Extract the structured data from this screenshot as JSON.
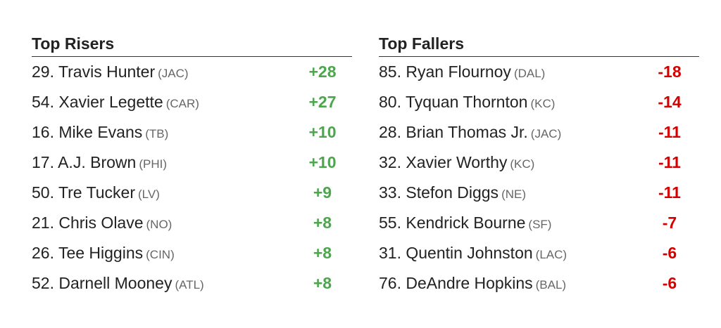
{
  "risers": {
    "title": "Top Risers",
    "rows": [
      {
        "player": "29. Travis Hunter",
        "team": "(JAC)",
        "change": "+28"
      },
      {
        "player": "54. Xavier Legette",
        "team": "(CAR)",
        "change": "+27"
      },
      {
        "player": "16. Mike Evans",
        "team": "(TB)",
        "change": "+10"
      },
      {
        "player": "17. A.J. Brown",
        "team": "(PHI)",
        "change": "+10"
      },
      {
        "player": "50. Tre Tucker",
        "team": "(LV)",
        "change": "+9"
      },
      {
        "player": "21. Chris Olave",
        "team": "(NO)",
        "change": "+8"
      },
      {
        "player": "26. Tee Higgins",
        "team": "(CIN)",
        "change": "+8"
      },
      {
        "player": "52. Darnell Mooney",
        "team": "(ATL)",
        "change": "+8"
      }
    ]
  },
  "fallers": {
    "title": "Top Fallers",
    "rows": [
      {
        "player": "85. Ryan Flournoy",
        "team": "(DAL)",
        "change": "-18"
      },
      {
        "player": "80. Tyquan Thornton",
        "team": "(KC)",
        "change": "-14"
      },
      {
        "player": "28. Brian Thomas Jr.",
        "team": "(JAC)",
        "change": "-11"
      },
      {
        "player": "32. Xavier Worthy",
        "team": "(KC)",
        "change": "-11"
      },
      {
        "player": "33. Stefon Diggs",
        "team": "(NE)",
        "change": "-11"
      },
      {
        "player": "55. Kendrick Bourne",
        "team": "(SF)",
        "change": "-7"
      },
      {
        "player": "31. Quentin Johnston",
        "team": "(LAC)",
        "change": "-6"
      },
      {
        "player": "76. DeAndre Hopkins",
        "team": "(BAL)",
        "change": "-6"
      }
    ]
  }
}
